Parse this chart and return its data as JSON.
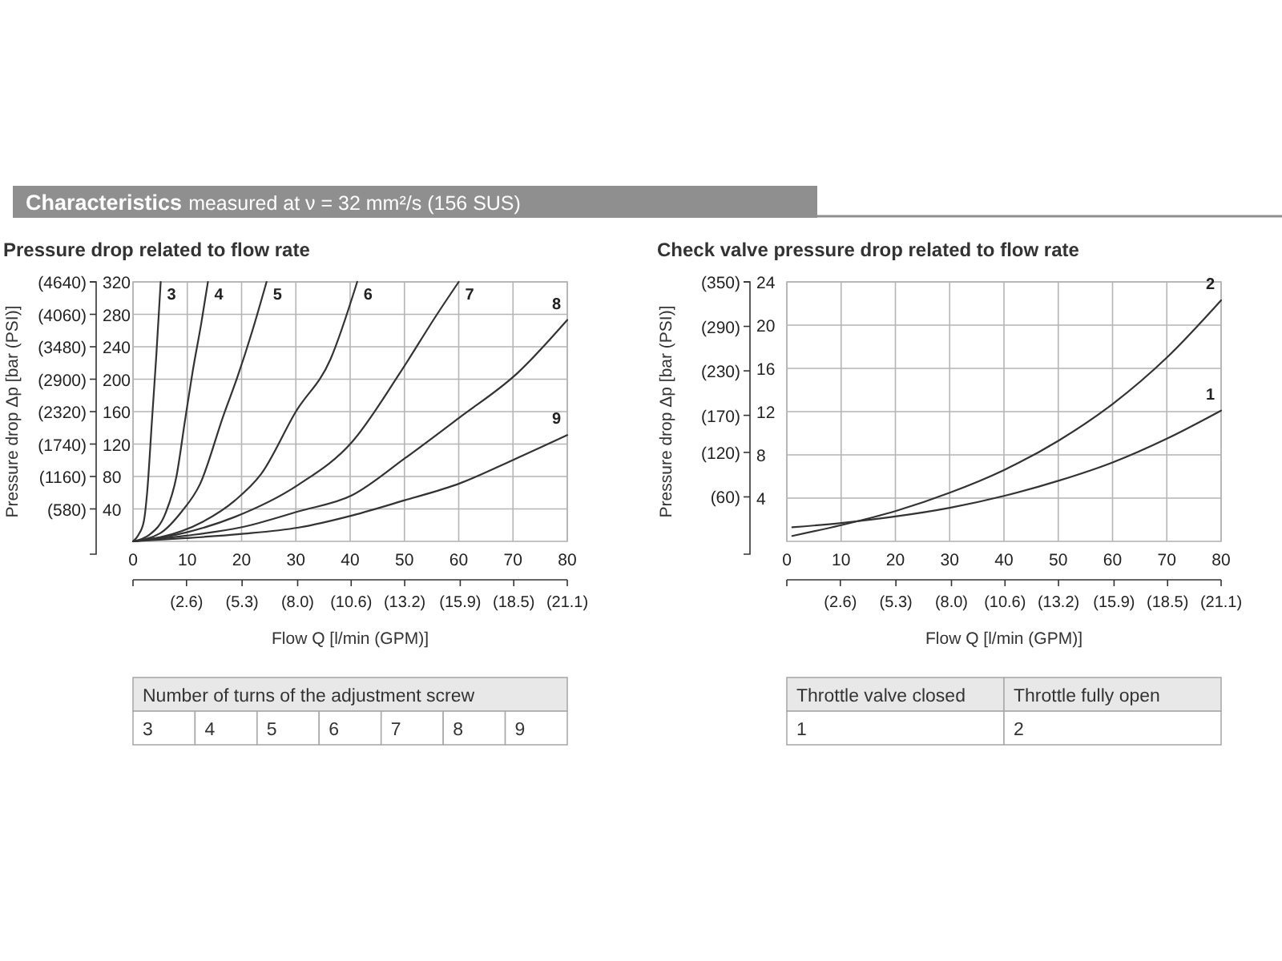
{
  "chart_data": [
    {
      "type": "line",
      "title": "Pressure drop related to flow rate",
      "xlabel": "Flow Q [l/min (GPM)]",
      "y2label": "Pressure drop Δp [bar (PSI)]",
      "legend_title": "Number of turns of the adjustment screw",
      "legend": "top right",
      "grid": true,
      "marker": "none",
      "line_style": "solid",
      "annotations": [
        "Characteristics",
        "measured at ν = 32 mm²/s (156 SUS)"
      ],
      "xlim": [
        0,
        80
      ],
      "xticks": [
        0,
        10,
        20,
        30,
        40,
        50,
        60,
        70,
        80
      ],
      "ylim": [
        0,
        320
      ],
      "yticks": [
        40,
        80,
        120,
        160,
        200,
        240,
        280,
        320
      ],
      "x2lim": [
        0,
        21.1
      ],
      "x2ticks": [
        {
          "value": 0,
          "label": null
        },
        {
          "value": 2.6,
          "label": "(2.6)"
        },
        {
          "value": 5.3,
          "label": "(5.3)"
        },
        {
          "value": 8.0,
          "label": "(8.0)"
        },
        {
          "value": 10.6,
          "label": "(10.6)"
        },
        {
          "value": 13.2,
          "label": "(13.2)"
        },
        {
          "value": 15.9,
          "label": "(15.9)"
        },
        {
          "value": 18.5,
          "label": "(18.5)"
        },
        {
          "value": 21.1,
          "label": "(21.1)"
        }
      ],
      "y2lim": [
        0,
        4640
      ],
      "y2ticks": [
        {
          "value": 580,
          "label": "(580)"
        },
        {
          "value": 1160,
          "label": "(1160)"
        },
        {
          "value": 1740,
          "label": "(1740)"
        },
        {
          "value": 2320,
          "label": "(2320)"
        },
        {
          "value": 2900,
          "label": "(2900)"
        },
        {
          "value": 3480,
          "label": "(3480)"
        },
        {
          "value": 4060,
          "label": "(4060)"
        },
        {
          "value": 4640,
          "label": "(4640)"
        }
      ],
      "series": [
        {
          "name": "3",
          "color": "#333333",
          "x": [
            0,
            1,
            2,
            2.6,
            3.5,
            4.3,
            5.1
          ],
          "values": [
            0,
            8,
            25,
            60,
            150,
            230,
            320
          ]
        },
        {
          "name": "4",
          "color": "#333333",
          "x": [
            0,
            3,
            6,
            8,
            9.6,
            11,
            12.6,
            13.8
          ],
          "values": [
            0,
            8,
            35,
            80,
            150,
            210,
            270,
            320
          ]
        },
        {
          "name": "5",
          "color": "#333333",
          "x": [
            0,
            5,
            9,
            12.3,
            16.7,
            19.2,
            22,
            24.6
          ],
          "values": [
            0,
            10,
            37,
            70,
            156,
            202,
            260,
            320
          ]
        },
        {
          "name": "6",
          "color": "#333333",
          "x": [
            0,
            5,
            12.8,
            18.7,
            23.6,
            30,
            36.4,
            41.3
          ],
          "values": [
            0,
            5,
            24,
            50,
            83,
            160,
            225,
            320
          ]
        },
        {
          "name": "7",
          "color": "#333333",
          "x": [
            0,
            9.8,
            18.7,
            30.5,
            40.4,
            49.2,
            56.1,
            60
          ],
          "values": [
            0,
            11,
            30,
            70,
            123,
            208,
            281,
            320
          ]
        },
        {
          "name": "8",
          "color": "#333333",
          "x": [
            0,
            9.8,
            19.7,
            30.5,
            40.4,
            50.2,
            60,
            70.9,
            80
          ],
          "values": [
            0,
            7,
            17,
            37,
            57,
            103,
            152,
            208,
            273
          ]
        },
        {
          "name": "9",
          "color": "#333333",
          "x": [
            0,
            9.8,
            19.7,
            30.5,
            40.4,
            50.2,
            60,
            69.9,
            80
          ],
          "values": [
            0,
            4,
            9,
            17,
            32,
            51,
            71,
            100,
            131
          ]
        }
      ]
    },
    {
      "type": "line",
      "title": "Check valve pressure drop related to flow rate",
      "xlabel": "Flow Q [l/min (GPM)]",
      "legend": "top right",
      "grid": true,
      "marker": "none",
      "line_style": "solid",
      "y2label": "Pressure drop Δp [bar (PSI)]",
      "annotations": [
        "Throttle valve closed",
        "Throttle fully open"
      ],
      "xlim": [
        0,
        80
      ],
      "xticks": [
        0,
        10,
        20,
        30,
        40,
        50,
        60,
        70,
        80
      ],
      "ylim": [
        0,
        24
      ],
      "yticks": [
        4,
        8,
        12,
        16,
        20,
        24
      ],
      "x2lim": [
        0,
        21.1
      ],
      "x2ticks": [
        {
          "value": 0,
          "label": null
        },
        {
          "value": 2.6,
          "label": "(2.6)"
        },
        {
          "value": 5.3,
          "label": "(5.3)"
        },
        {
          "value": 8.0,
          "label": "(8.0)"
        },
        {
          "value": 10.6,
          "label": "(10.6)"
        },
        {
          "value": 13.2,
          "label": "(13.2)"
        },
        {
          "value": 15.9,
          "label": "(15.9)"
        },
        {
          "value": 18.5,
          "label": "(18.5)"
        },
        {
          "value": 21.1,
          "label": "(21.1)"
        }
      ],
      "y2lim": [
        0,
        350
      ],
      "y2ticks": [
        {
          "value": 60,
          "label": "(60)"
        },
        {
          "value": 120,
          "label": "(120)"
        },
        {
          "value": 170,
          "label": "(170)"
        },
        {
          "value": 230,
          "label": "(230)"
        },
        {
          "value": 290,
          "label": "(290)"
        },
        {
          "value": 350,
          "label": "(350)"
        }
      ],
      "series": [
        {
          "name": "1",
          "color": "#333333",
          "x": [
            1,
            10,
            20,
            30,
            40,
            50,
            60,
            70,
            80
          ],
          "values": [
            1.3,
            1.7,
            2.3,
            3.1,
            4.2,
            5.6,
            7.3,
            9.5,
            12.1
          ]
        },
        {
          "name": "2",
          "color": "#333333",
          "x": [
            1,
            10,
            20,
            30,
            40,
            50,
            60,
            70,
            80
          ],
          "values": [
            0.5,
            1.5,
            2.8,
            4.5,
            6.6,
            9.3,
            12.7,
            17,
            22.3
          ]
        }
      ]
    }
  ]
}
